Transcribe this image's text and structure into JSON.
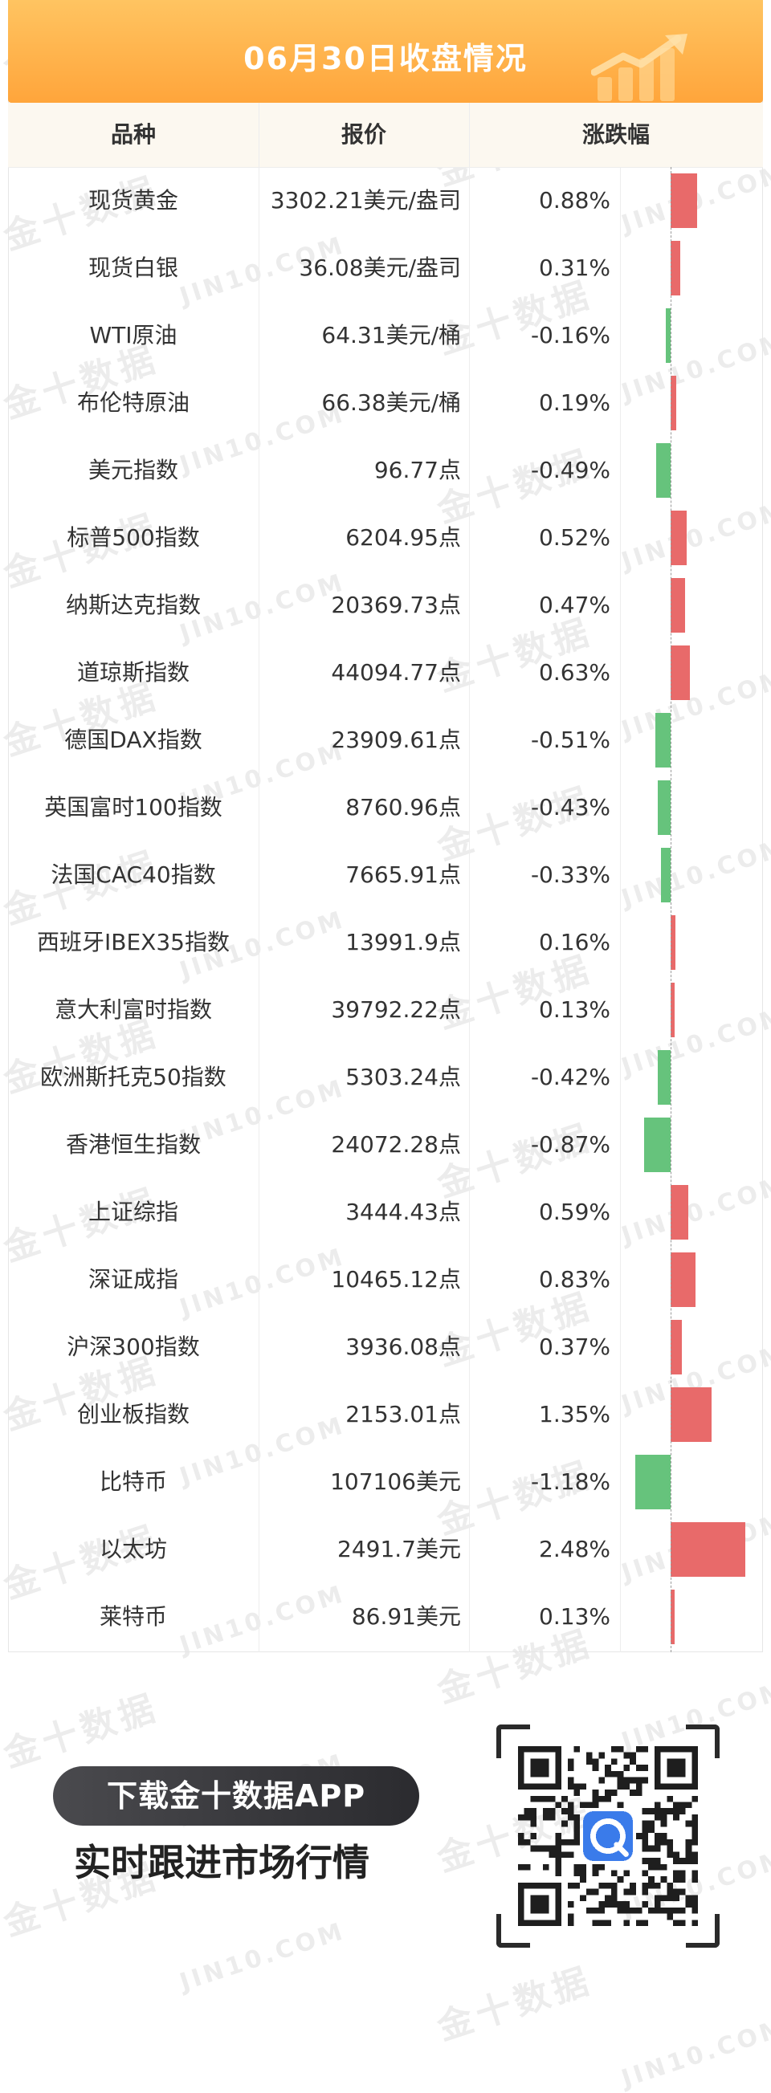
{
  "header": {
    "title": "06月30日收盘情况",
    "col_name": "品种",
    "col_price": "报价",
    "col_change": "涨跌幅"
  },
  "colors": {
    "up": "#e86a6a",
    "down": "#66c37c",
    "banner": "#ffb24a"
  },
  "rows": [
    {
      "name": "现货黄金",
      "price": "3302.21美元/盎司",
      "change": "0.88%",
      "value": 0.88
    },
    {
      "name": "现货白银",
      "price": "36.08美元/盎司",
      "change": "0.31%",
      "value": 0.31
    },
    {
      "name": "WTI原油",
      "price": "64.31美元/桶",
      "change": "-0.16%",
      "value": -0.16
    },
    {
      "name": "布伦特原油",
      "price": "66.38美元/桶",
      "change": "0.19%",
      "value": 0.19
    },
    {
      "name": "美元指数",
      "price": "96.77点",
      "change": "-0.49%",
      "value": -0.49
    },
    {
      "name": "标普500指数",
      "price": "6204.95点",
      "change": "0.52%",
      "value": 0.52
    },
    {
      "name": "纳斯达克指数",
      "price": "20369.73点",
      "change": "0.47%",
      "value": 0.47
    },
    {
      "name": "道琼斯指数",
      "price": "44094.77点",
      "change": "0.63%",
      "value": 0.63
    },
    {
      "name": "德国DAX指数",
      "price": "23909.61点",
      "change": "-0.51%",
      "value": -0.51
    },
    {
      "name": "英国富时100指数",
      "price": "8760.96点",
      "change": "-0.43%",
      "value": -0.43
    },
    {
      "name": "法国CAC40指数",
      "price": "7665.91点",
      "change": "-0.33%",
      "value": -0.33
    },
    {
      "name": "西班牙IBEX35指数",
      "price": "13991.9点",
      "change": "0.16%",
      "value": 0.16
    },
    {
      "name": "意大利富时指数",
      "price": "39792.22点",
      "change": "0.13%",
      "value": 0.13
    },
    {
      "name": "欧洲斯托克50指数",
      "price": "5303.24点",
      "change": "-0.42%",
      "value": -0.42
    },
    {
      "name": "香港恒生指数",
      "price": "24072.28点",
      "change": "-0.87%",
      "value": -0.87
    },
    {
      "name": "上证综指",
      "price": "3444.43点",
      "change": "0.59%",
      "value": 0.59
    },
    {
      "name": "深证成指",
      "price": "10465.12点",
      "change": "0.83%",
      "value": 0.83
    },
    {
      "name": "沪深300指数",
      "price": "3936.08点",
      "change": "0.37%",
      "value": 0.37
    },
    {
      "name": "创业板指数",
      "price": "2153.01点",
      "change": "1.35%",
      "value": 1.35
    },
    {
      "name": "比特币",
      "price": "107106美元",
      "change": "-1.18%",
      "value": -1.18
    },
    {
      "name": "以太坊",
      "price": "2491.7美元",
      "change": "2.48%",
      "value": 2.48
    },
    {
      "name": "莱特币",
      "price": "86.91美元",
      "change": "0.13%",
      "value": 0.13
    }
  ],
  "footer": {
    "download_button": "下载金十数据APP",
    "tagline": "实时跟进市场行情"
  },
  "watermark": {
    "cn": "金十数据",
    "en": "JIN10.COM"
  }
}
